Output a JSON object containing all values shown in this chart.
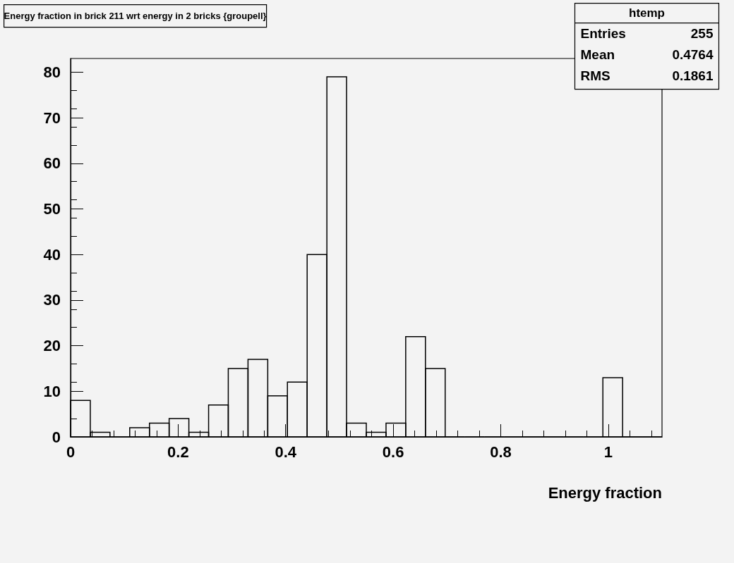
{
  "chart_data": {
    "type": "histogram",
    "title": "Energy fraction in brick 211 wrt energy in 2 bricks {groupell}",
    "xlabel": "Energy fraction",
    "bins": [
      0,
      0.0367,
      0.0733,
      0.11,
      0.1467,
      0.1833,
      0.22,
      0.2567,
      0.2933,
      0.33,
      0.3667,
      0.4033,
      0.44,
      0.4767,
      0.5133,
      0.55,
      0.5867,
      0.6233,
      0.66,
      0.6967,
      0.7333,
      0.77,
      0.8067,
      0.8433,
      0.88,
      0.9167,
      0.9533,
      0.99,
      1.0267,
      1.0633,
      1.1
    ],
    "values": [
      8,
      1,
      0,
      2,
      3,
      4,
      1,
      7,
      15,
      17,
      9,
      12,
      40,
      79,
      3,
      1,
      3,
      22,
      15,
      0,
      0,
      0,
      0,
      0,
      0,
      0,
      0,
      13,
      0,
      0
    ],
    "color": "#000000",
    "xlim": [
      0,
      1.1
    ],
    "xticks": [
      0,
      0.2,
      0.4,
      0.6,
      0.8,
      1
    ],
    "ylim": [
      0,
      83
    ],
    "yticks": [
      0,
      10,
      20,
      30,
      40,
      50,
      60,
      70,
      80
    ],
    "grid": false,
    "annotations": [
      "htemp",
      "Entries",
      "255",
      "Mean",
      "0.4764",
      "RMS",
      "0.1861"
    ]
  }
}
